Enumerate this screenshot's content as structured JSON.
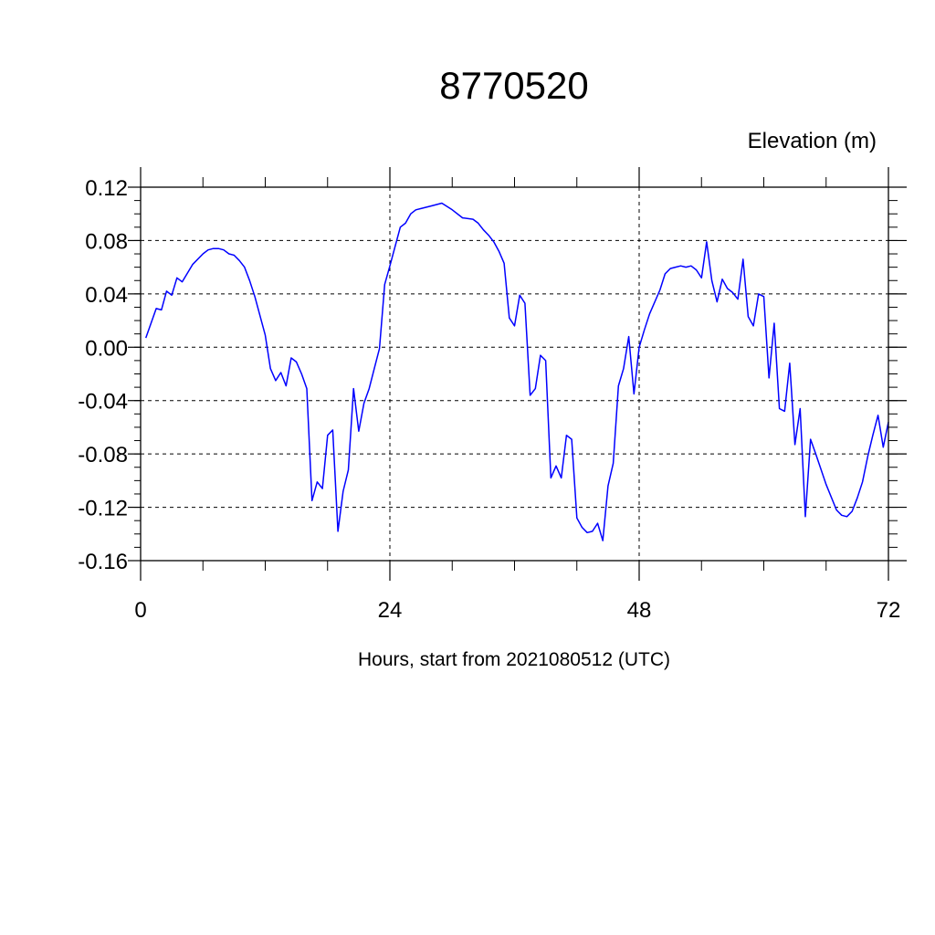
{
  "chart_data": {
    "type": "line",
    "title": "8770520",
    "ylabel": "Elevation (m)",
    "xlabel": "Hours, start from 2021080512 (UTC)",
    "xlim": [
      0,
      72
    ],
    "ylim": [
      -0.16,
      0.12
    ],
    "x_ticks": [
      0,
      24,
      48,
      72
    ],
    "x_tick_labels": [
      "0",
      "24",
      "48",
      "72"
    ],
    "y_ticks": [
      0.12,
      0.08,
      0.04,
      0.0,
      -0.04,
      -0.08,
      -0.12,
      -0.16
    ],
    "y_tick_labels": [
      "0.12",
      "0.08",
      "0.04",
      "0.00",
      "-0.04",
      "-0.08",
      "-0.12",
      "-0.16"
    ],
    "grid": true,
    "series": [
      {
        "color": "#0000ff",
        "x": [
          0.5,
          1.0,
          1.5,
          2.0,
          2.5,
          3.0,
          3.5,
          4.0,
          5.0,
          6.0,
          6.5,
          7.0,
          7.5,
          8.0,
          8.5,
          9.0,
          9.5,
          10.0,
          10.5,
          11.0,
          12.0,
          12.5,
          13.0,
          13.5,
          14.0,
          14.5,
          15.0,
          15.5,
          16.0,
          16.5,
          17.0,
          17.5,
          18.0,
          18.5,
          19.0,
          19.5,
          20.0,
          20.5,
          21.0,
          21.5,
          22.0,
          22.5,
          23.0,
          23.5,
          24.0,
          25.0,
          25.5,
          26.0,
          26.5,
          27.0,
          28.0,
          29.0,
          30.0,
          31.0,
          32.0,
          32.5,
          33.0,
          33.5,
          34.0,
          34.5,
          35.0,
          35.5,
          36.0,
          36.5,
          37.0,
          37.5,
          38.0,
          38.5,
          39.0,
          39.5,
          40.0,
          40.5,
          41.0,
          41.5,
          42.0,
          42.5,
          43.0,
          43.5,
          44.0,
          44.5,
          45.0,
          45.5,
          46.0,
          46.5,
          47.0,
          47.5,
          48.0,
          48.5,
          49.0,
          50.0,
          50.5,
          51.0,
          51.5,
          52.0,
          52.5,
          53.0,
          53.5,
          54.0,
          54.5,
          55.0,
          55.5,
          56.0,
          56.5,
          57.0,
          57.5,
          58.0,
          58.5,
          59.0,
          59.5,
          60.0,
          60.5,
          61.0,
          61.5,
          62.0,
          62.5,
          63.0,
          63.5,
          64.0,
          64.5,
          65.0,
          66.0,
          67.0,
          67.5,
          68.0,
          68.5,
          69.0,
          69.5,
          70.0,
          70.5,
          71.0,
          71.5,
          72.0
        ],
        "y": [
          0.007,
          0.018,
          0.029,
          0.028,
          0.042,
          0.039,
          0.052,
          0.049,
          0.062,
          0.07,
          0.073,
          0.074,
          0.074,
          0.073,
          0.07,
          0.069,
          0.065,
          0.06,
          0.05,
          0.038,
          0.009,
          -0.016,
          -0.025,
          -0.019,
          -0.029,
          -0.008,
          -0.011,
          -0.02,
          -0.031,
          -0.115,
          -0.101,
          -0.106,
          -0.066,
          -0.062,
          -0.138,
          -0.108,
          -0.092,
          -0.031,
          -0.063,
          -0.042,
          -0.031,
          -0.016,
          -0.001,
          0.047,
          0.061,
          0.09,
          0.093,
          0.1,
          0.103,
          0.104,
          0.106,
          0.108,
          0.103,
          0.097,
          0.096,
          0.093,
          0.088,
          0.084,
          0.079,
          0.072,
          0.063,
          0.022,
          0.016,
          0.039,
          0.033,
          -0.036,
          -0.031,
          -0.006,
          -0.01,
          -0.098,
          -0.089,
          -0.098,
          -0.066,
          -0.069,
          -0.128,
          -0.135,
          -0.139,
          -0.138,
          -0.132,
          -0.145,
          -0.104,
          -0.087,
          -0.029,
          -0.016,
          0.008,
          -0.035,
          0.0,
          0.013,
          0.025,
          0.043,
          0.055,
          0.059,
          0.06,
          0.061,
          0.06,
          0.061,
          0.058,
          0.052,
          0.079,
          0.05,
          0.034,
          0.051,
          0.044,
          0.041,
          0.036,
          0.066,
          0.023,
          0.016,
          0.04,
          0.038,
          -0.023,
          0.018,
          -0.046,
          -0.048,
          -0.012,
          -0.073,
          -0.046,
          -0.127,
          -0.069,
          -0.08,
          -0.103,
          -0.122,
          -0.126,
          -0.127,
          -0.123,
          -0.113,
          -0.101,
          -0.082,
          -0.066,
          -0.051,
          -0.075,
          -0.056
        ]
      }
    ]
  }
}
